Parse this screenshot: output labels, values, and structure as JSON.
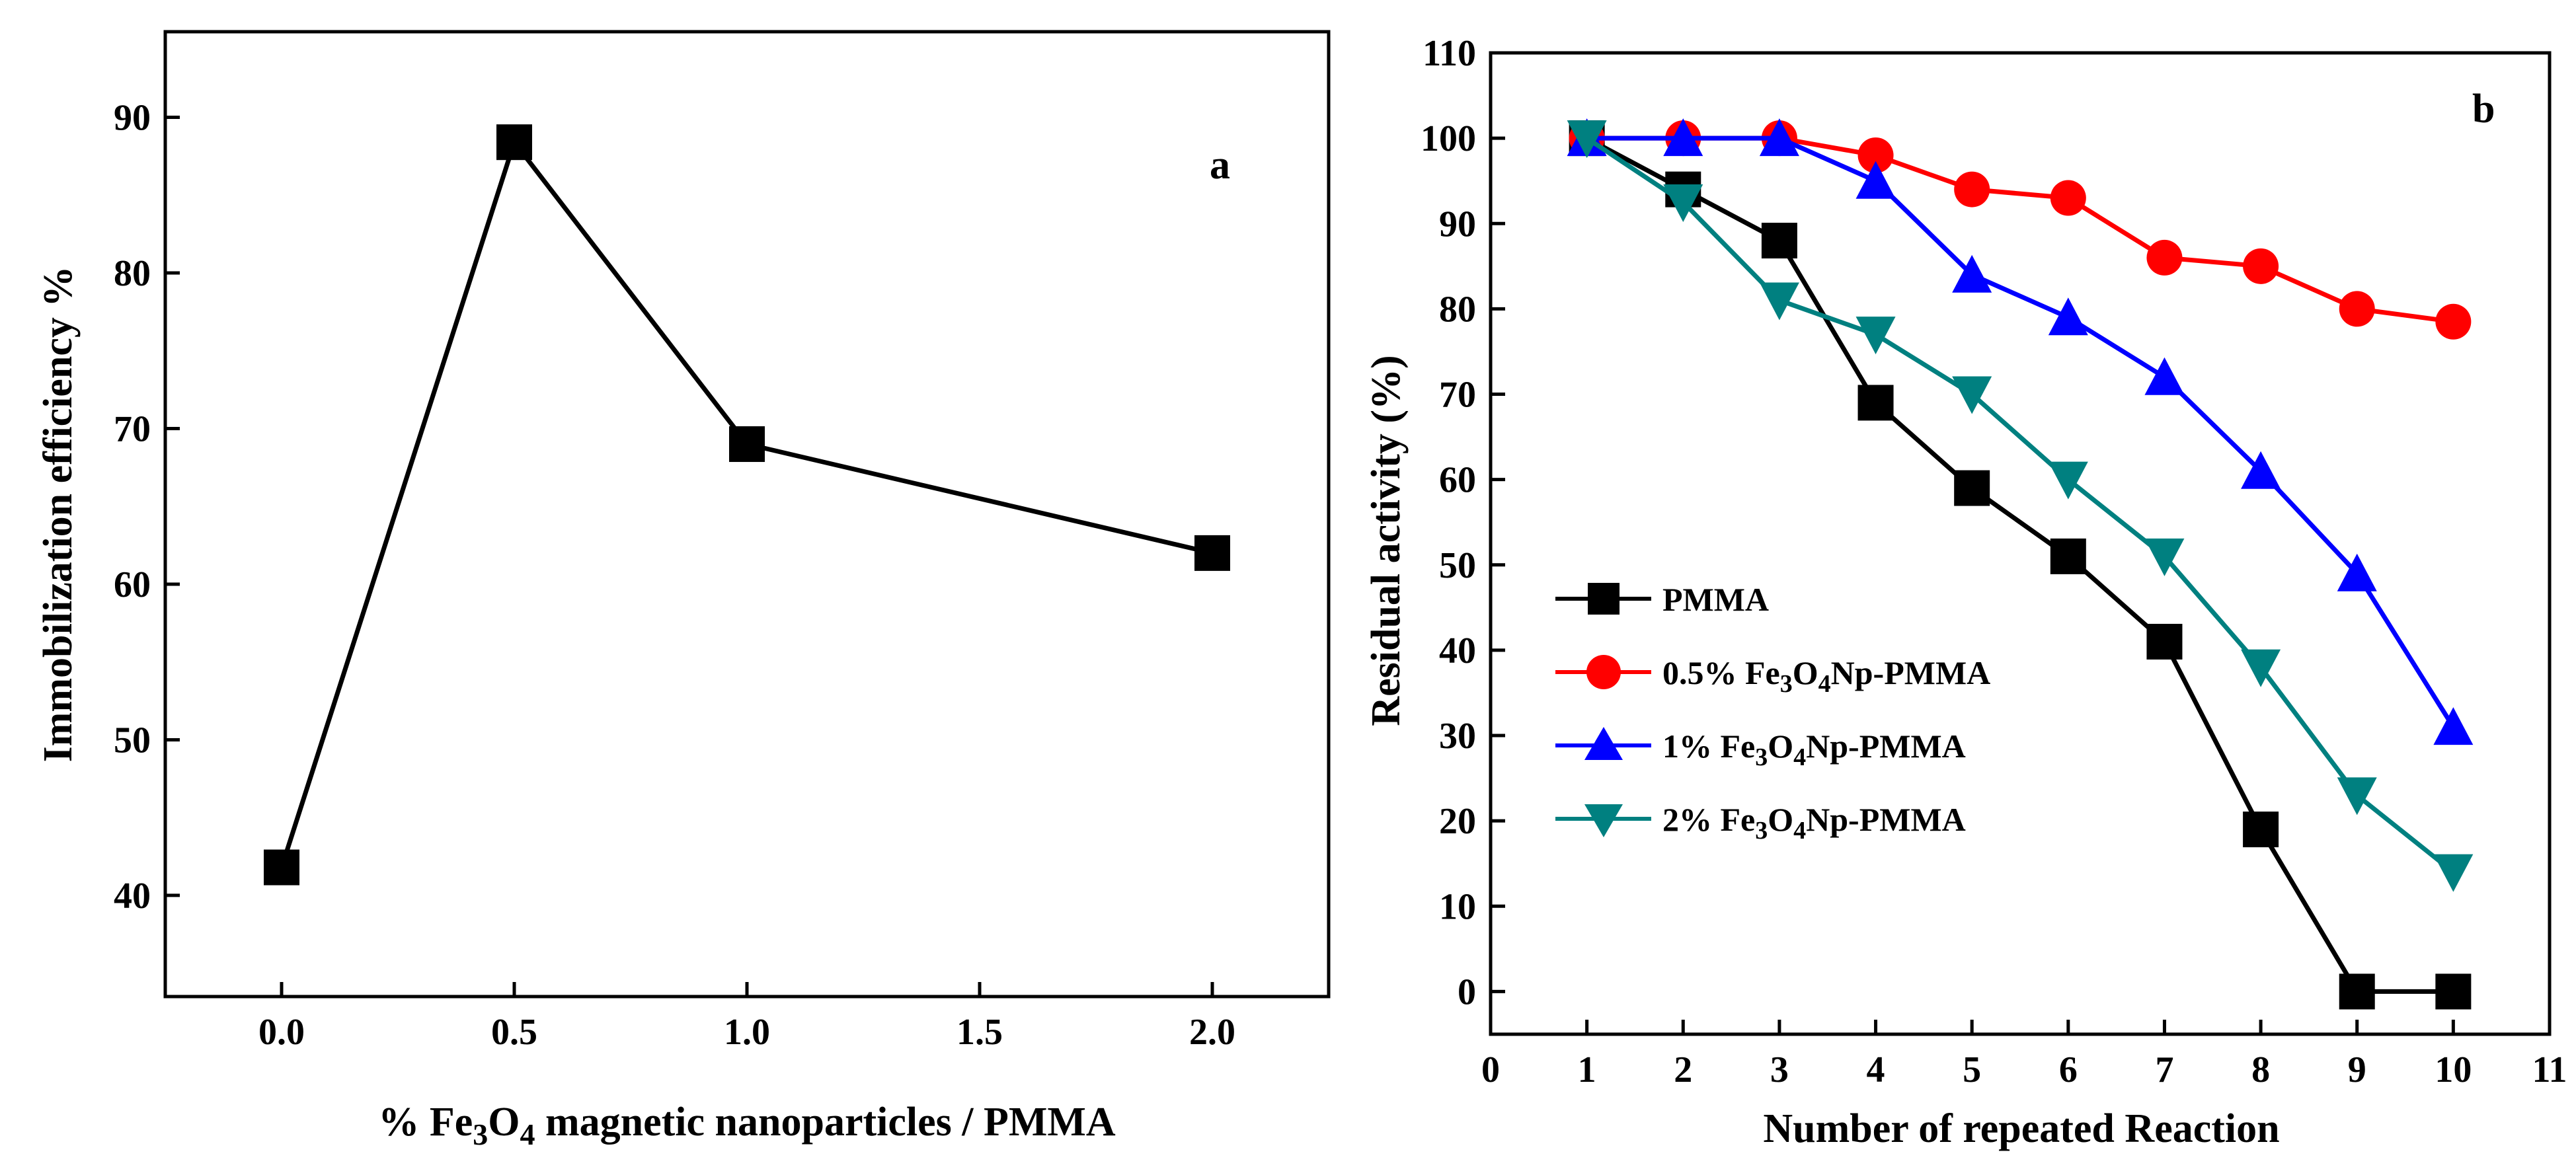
{
  "chart_data": [
    {
      "type": "line",
      "panel_label": "a",
      "xlabel_parts": [
        "% Fe",
        "3",
        "O",
        "4",
        " magnetic nanoparticles / PMMA"
      ],
      "ylabel": "Immobilization efficiency %",
      "xlim": [
        -0.25,
        2.25
      ],
      "ylim": [
        33.5,
        95.5
      ],
      "xticks": [
        "0.0",
        "0.5",
        "1.0",
        "1.5",
        "2.0"
      ],
      "yticks": [
        "40",
        "50",
        "60",
        "70",
        "80",
        "90"
      ],
      "grid": false,
      "series": [
        {
          "color": "#000000",
          "marker": "square",
          "x": [
            0.0,
            0.5,
            1.0,
            2.0
          ],
          "y": [
            41.8,
            88.4,
            69.0,
            62.0
          ]
        }
      ]
    },
    {
      "type": "line",
      "panel_label": "b",
      "xlabel": "Number of repeated Reaction",
      "ylabel": "Residual activity (%)",
      "xlim": [
        0,
        11
      ],
      "ylim": [
        -5,
        110
      ],
      "xticks": [
        "0",
        "1",
        "2",
        "3",
        "4",
        "5",
        "6",
        "7",
        "8",
        "9",
        "10",
        "11"
      ],
      "yticks": [
        "0",
        "10",
        "20",
        "30",
        "40",
        "50",
        "60",
        "70",
        "80",
        "90",
        "100",
        "110"
      ],
      "grid": false,
      "legend_position": "lower-left",
      "x": [
        1,
        2,
        3,
        4,
        5,
        6,
        7,
        8,
        9,
        10
      ],
      "series": [
        {
          "name_parts": [
            "PMMA"
          ],
          "color": "#000000",
          "marker": "square",
          "values": [
            100,
            94,
            88,
            69,
            59,
            51,
            41,
            19,
            0,
            0
          ]
        },
        {
          "name_parts": [
            "0.5% Fe",
            "3",
            "O",
            "4",
            "Np-PMMA"
          ],
          "color": "#ff0000",
          "marker": "circle",
          "values": [
            100,
            100,
            100,
            98,
            94,
            93,
            86,
            85,
            80,
            78.5
          ]
        },
        {
          "name_parts": [
            "1% Fe",
            "3",
            "O",
            "4",
            "Np-PMMA"
          ],
          "color": "#0000ff",
          "marker": "triangle-up",
          "values": [
            100,
            100,
            100,
            95,
            84,
            79,
            72,
            61,
            49,
            31
          ]
        },
        {
          "name_parts": [
            "2% Fe",
            "3",
            "O",
            "4",
            "Np-PMMA"
          ],
          "color": "#008080",
          "marker": "triangle-down",
          "values": [
            100,
            92.5,
            81,
            77,
            70,
            60,
            51,
            38,
            23,
            14
          ]
        }
      ]
    }
  ]
}
